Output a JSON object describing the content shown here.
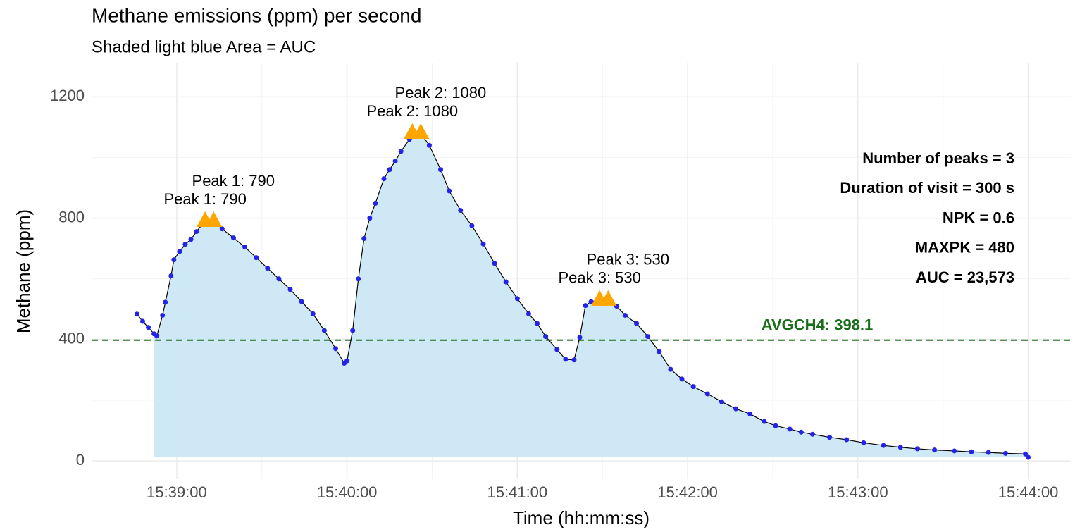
{
  "chart_data": {
    "type": "line",
    "title": "Methane emissions (ppm) per second",
    "subtitle": "Shaded light blue Area = AUC",
    "x_label": "Time (hh:mm:ss)",
    "y_label": "Methane (ppm)",
    "x": [
      "15:38:46",
      "15:38:48",
      "15:38:50",
      "15:38:52",
      "15:38:53",
      "15:38:55",
      "15:38:56",
      "15:38:58",
      "15:38:59",
      "15:39:01",
      "15:39:03",
      "15:39:05",
      "15:39:07",
      "15:39:09",
      "15:39:10",
      "15:39:13",
      "15:39:16",
      "15:39:20",
      "15:39:24",
      "15:39:28",
      "15:39:32",
      "15:39:36",
      "15:39:40",
      "15:39:44",
      "15:39:48",
      "15:39:52",
      "15:39:56",
      "15:39:59",
      "15:40:00",
      "15:40:02",
      "15:40:04",
      "15:40:06",
      "15:40:08",
      "15:40:10",
      "15:40:13",
      "15:40:15",
      "15:40:17",
      "15:40:19",
      "15:40:22",
      "15:40:23",
      "15:40:26",
      "15:40:29",
      "15:40:33",
      "15:40:36",
      "15:40:40",
      "15:40:44",
      "15:40:48",
      "15:40:52",
      "15:40:56",
      "15:41:00",
      "15:41:04",
      "15:41:07",
      "15:41:10",
      "15:41:14",
      "15:41:17",
      "15:41:20",
      "15:41:22",
      "15:41:24",
      "15:41:26",
      "15:41:29",
      "15:41:32",
      "15:41:35",
      "15:41:38",
      "15:41:42",
      "15:41:46",
      "15:41:50",
      "15:41:54",
      "15:41:58",
      "15:42:02",
      "15:42:07",
      "15:42:12",
      "15:42:17",
      "15:42:22",
      "15:42:27",
      "15:42:31",
      "15:42:36",
      "15:42:40",
      "15:42:44",
      "15:42:50",
      "15:42:56",
      "15:43:02",
      "15:43:09",
      "15:43:15",
      "15:43:21",
      "15:43:27",
      "15:43:34",
      "15:43:40",
      "15:43:46",
      "15:43:52",
      "15:43:59",
      "15:44:00"
    ],
    "series": [
      {
        "name": "Methane",
        "color": "#2424e6",
        "values": [
          484,
          460,
          440,
          419,
          412,
          480,
          523,
          610,
          663,
          690,
          714,
          730,
          756,
          780,
          790,
          790,
          765,
          735,
          705,
          670,
          635,
          600,
          565,
          525,
          485,
          430,
          370,
          322,
          330,
          430,
          600,
          733,
          800,
          849,
          930,
          960,
          988,
          1020,
          1060,
          1080,
          1080,
          1040,
          960,
          890,
          826,
          775,
          715,
          651,
          590,
          535,
          485,
          453,
          410,
          367,
          335,
          333,
          407,
          512,
          525,
          530,
          530,
          510,
          480,
          453,
          410,
          360,
          302,
          270,
          245,
          221,
          195,
          172,
          155,
          130,
          116,
          105,
          95,
          88,
          78,
          70,
          60,
          51,
          45,
          40,
          36,
          33,
          30,
          28,
          25,
          23,
          12
        ]
      }
    ],
    "area_from": "15:38:52",
    "area_color": "#cfe8f5",
    "xlim": [
      "15:38:30",
      "15:44:15"
    ],
    "xticks": [
      "15:39:00",
      "15:40:00",
      "15:41:00",
      "15:42:00",
      "15:43:00",
      "15:44:00"
    ],
    "ylim": [
      -60,
      1310
    ],
    "yticks": [
      0,
      400,
      800,
      1200
    ],
    "grid": true,
    "peaks": [
      {
        "x": "15:39:10",
        "value": 790,
        "label": "Peak 1: 790"
      },
      {
        "x": "15:39:13",
        "value": 790,
        "label": "Peak 1: 790"
      },
      {
        "x": "15:40:23",
        "value": 1080,
        "label": "Peak 2: 1080"
      },
      {
        "x": "15:40:26",
        "value": 1080,
        "label": "Peak 2: 1080"
      },
      {
        "x": "15:41:29",
        "value": 530,
        "label": "Peak 3: 530"
      },
      {
        "x": "15:41:32",
        "value": 530,
        "label": "Peak 3: 530"
      }
    ],
    "peak_color": "#ffa500",
    "average": {
      "value": 398.1,
      "label": "AVGCH4: 398.1",
      "color": "#1a6e1a"
    },
    "stats": [
      "Number of peaks = 3",
      "Duration of visit = 300 s",
      "NPK = 0.6",
      "MAXPK = 480",
      "AUC = 23,573"
    ]
  }
}
